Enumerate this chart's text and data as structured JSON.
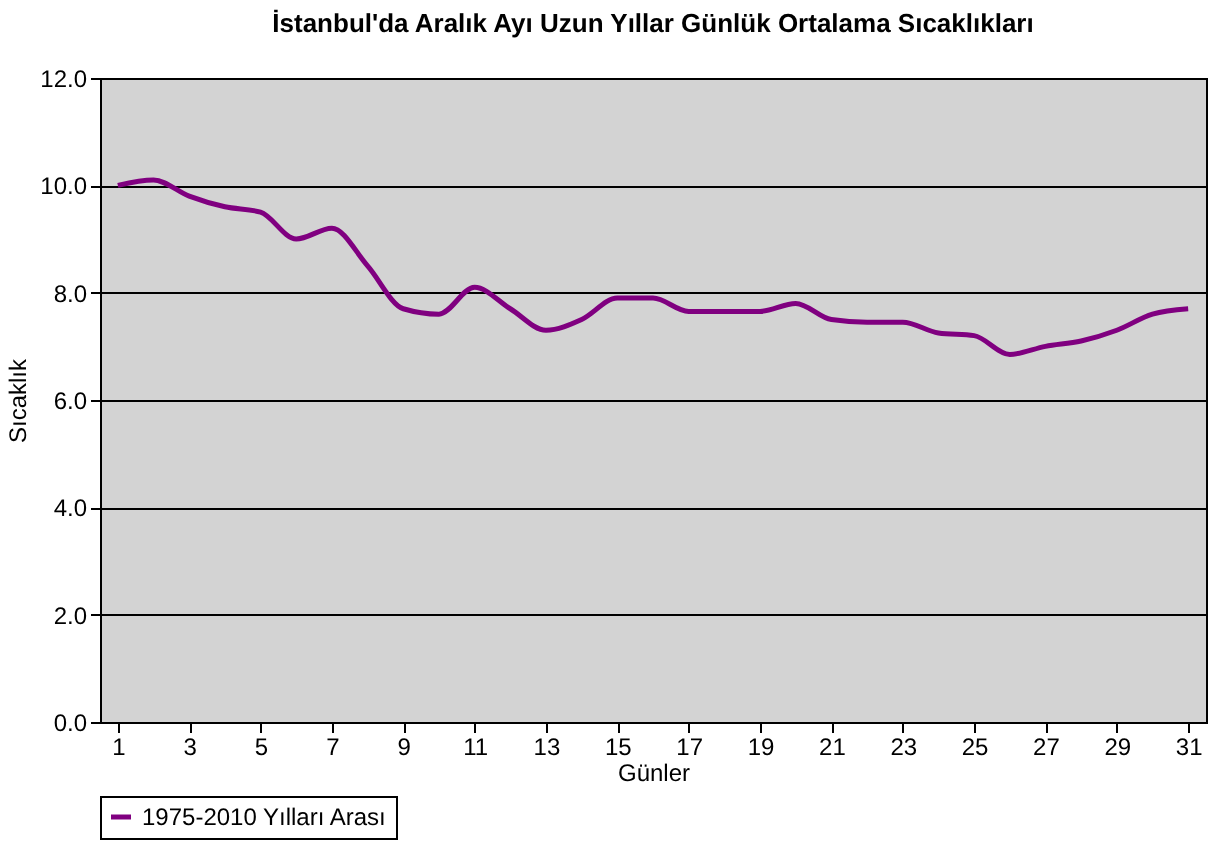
{
  "chart_data": {
    "type": "line",
    "title": "İstanbul'da Aralık Ayı Uzun Yıllar Günlük Ortalama Sıcaklıkları",
    "xlabel": "Günler",
    "ylabel": "Sıcaklık",
    "x": [
      1,
      2,
      3,
      4,
      5,
      6,
      7,
      8,
      9,
      10,
      11,
      12,
      13,
      14,
      15,
      16,
      17,
      18,
      19,
      20,
      21,
      22,
      23,
      24,
      25,
      26,
      27,
      28,
      29,
      30,
      31
    ],
    "series": [
      {
        "name": "1975-2010 Yılları Arası",
        "color": "#800080",
        "values": [
          10.0,
          10.1,
          9.8,
          9.6,
          9.5,
          9.0,
          9.2,
          8.5,
          7.7,
          7.6,
          8.1,
          7.7,
          7.3,
          7.5,
          7.9,
          7.9,
          7.65,
          7.65,
          7.65,
          7.8,
          7.5,
          7.45,
          7.45,
          7.25,
          7.2,
          6.85,
          7.0,
          7.1,
          7.3,
          7.6,
          7.7
        ]
      }
    ],
    "xlim": [
      0.5,
      31.5
    ],
    "xticks": [
      1,
      3,
      5,
      7,
      9,
      11,
      13,
      15,
      17,
      19,
      21,
      23,
      25,
      27,
      29,
      31
    ],
    "ylim": [
      0,
      12
    ],
    "yticks": [
      {
        "value": 0,
        "label": "0.0"
      },
      {
        "value": 2,
        "label": "2.0"
      },
      {
        "value": 4,
        "label": "4.0"
      },
      {
        "value": 6,
        "label": "6.0"
      },
      {
        "value": 8,
        "label": "8.0"
      },
      {
        "value": 10,
        "label": "10.0"
      },
      {
        "value": 12,
        "label": "12.0"
      }
    ],
    "grid": "y",
    "legend": "bottom",
    "marker": "none",
    "line_style": "solid"
  }
}
